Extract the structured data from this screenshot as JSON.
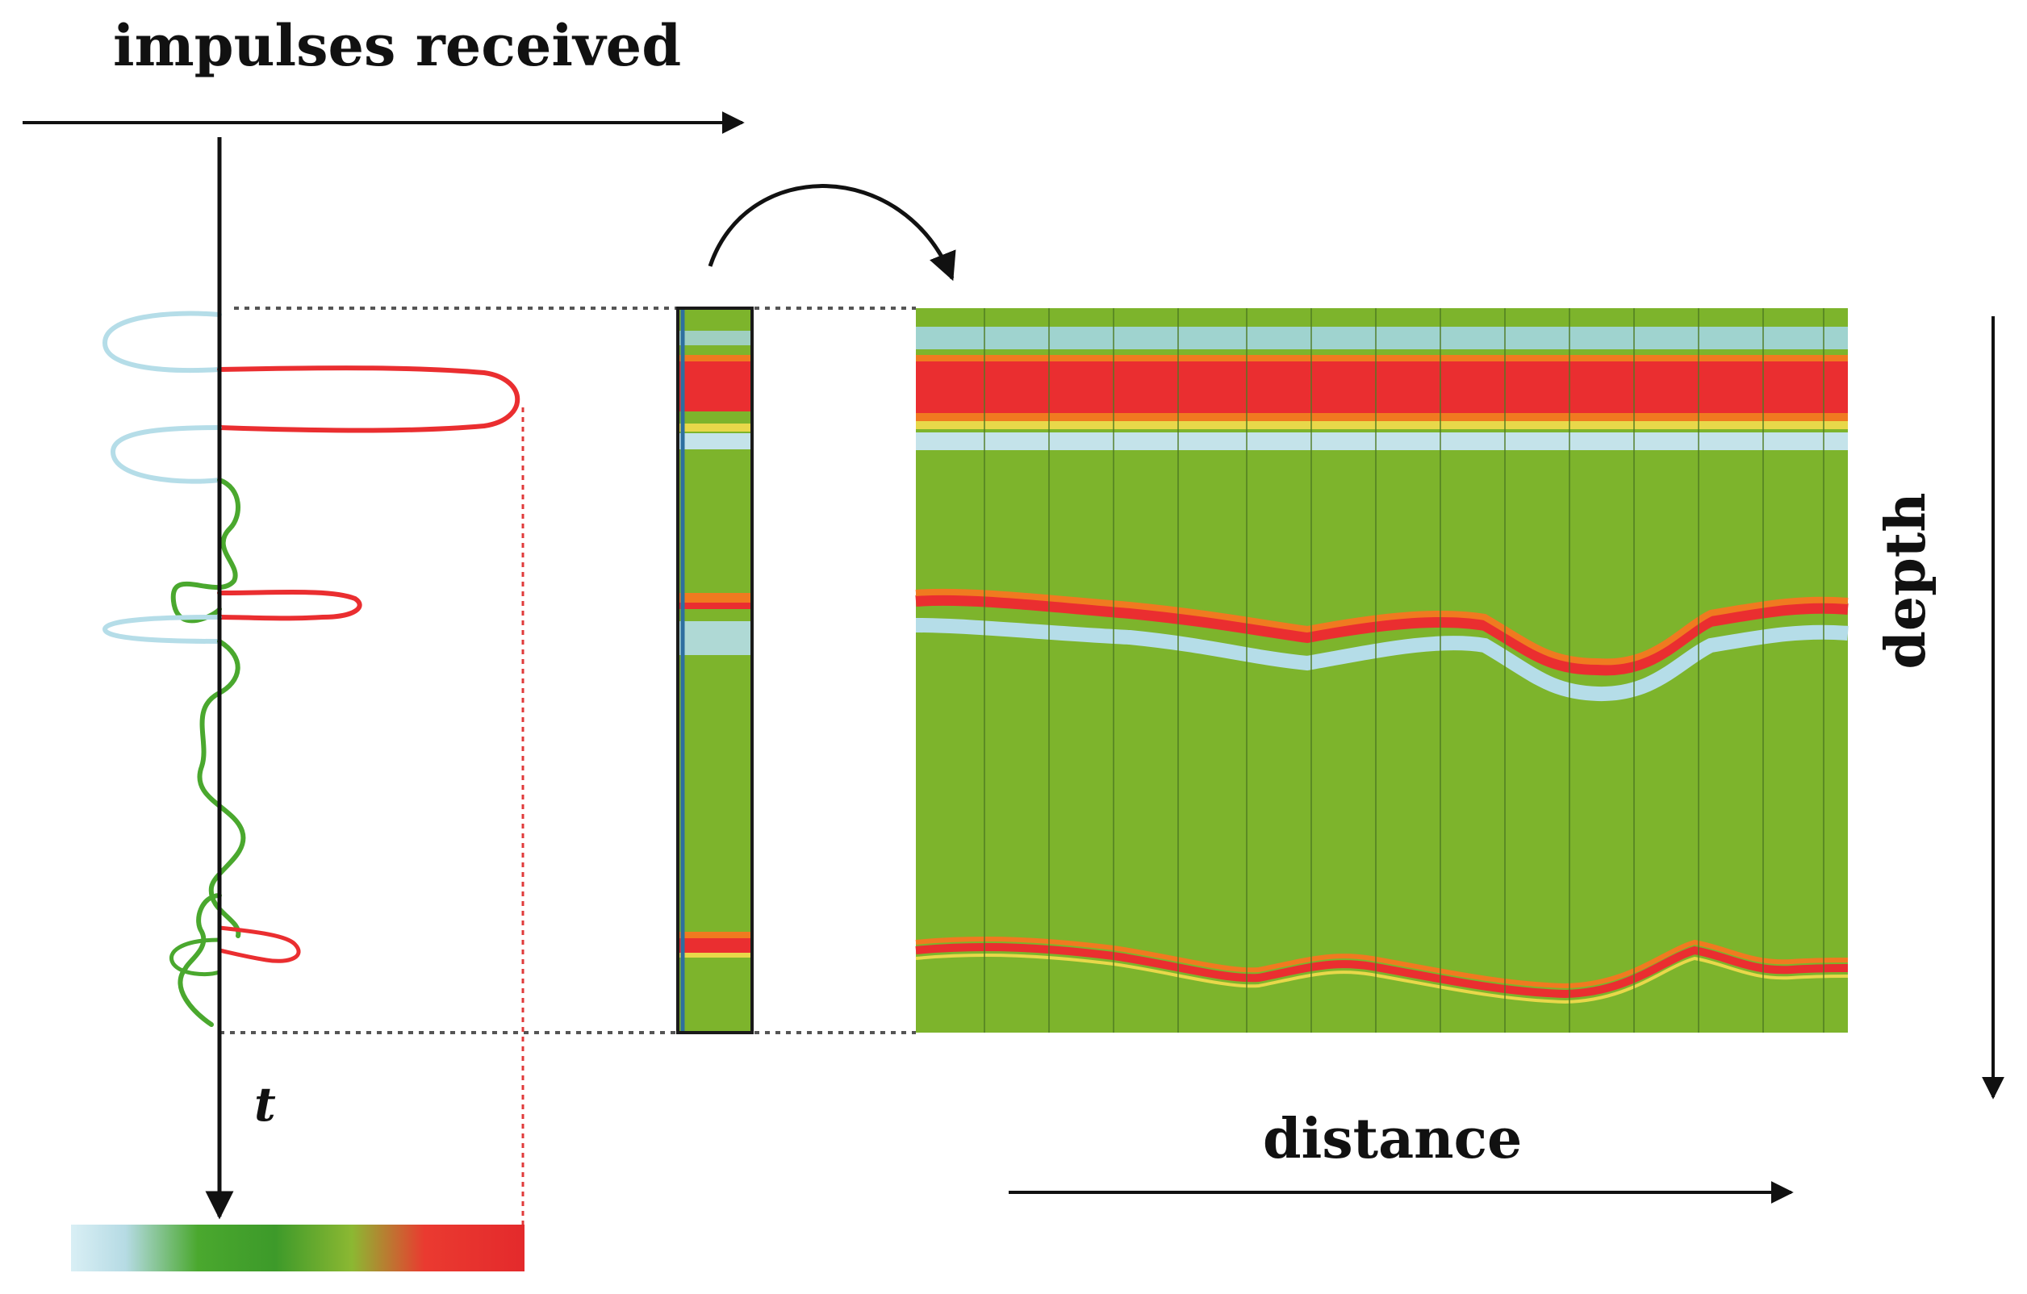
{
  "labels": {
    "impulses_received": "impulses received",
    "distance": "distance",
    "depth": "depth",
    "time_axis": "t"
  },
  "colors": {
    "green": "#7db42c",
    "red": "#ea2e30",
    "orange": "#f07a20",
    "cyan": "#b5dde8",
    "yellow": "#e8d84a",
    "ink": "#111111"
  },
  "color_scale": [
    "#d6eef5",
    "#4aa82e",
    "#3f9e2b",
    "#7db42c",
    "#ea2e30",
    "#ea2e30"
  ]
}
